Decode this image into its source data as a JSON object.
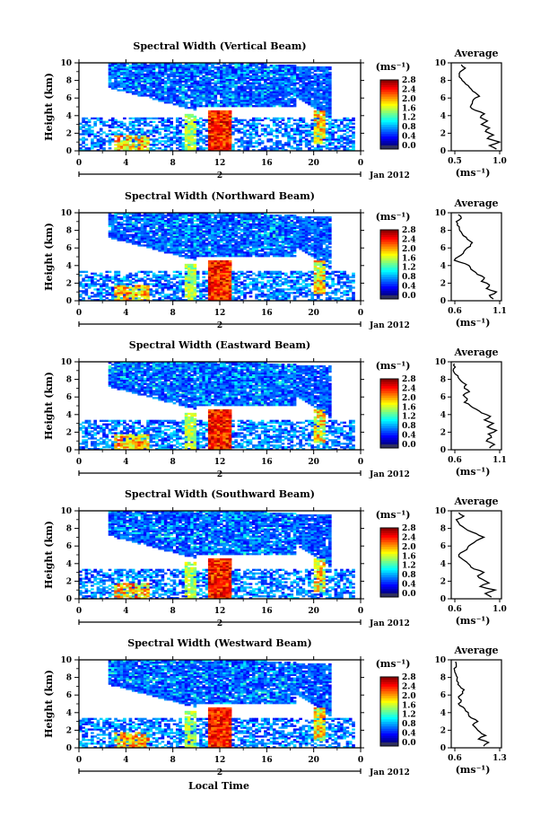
{
  "figure": {
    "xlabel": "Local Time",
    "date_label": "Jan 2012",
    "day_label": "2",
    "ylabel": "Height (km)",
    "unit_label": "(ms⁻¹)",
    "avg_title": "Average",
    "avg_unit_label": "(ms⁻¹)",
    "x_ticks": [
      "0",
      "4",
      "8",
      "12",
      "16",
      "20",
      "0"
    ],
    "y_ticks": [
      "0",
      "2",
      "4",
      "6",
      "8",
      "10"
    ],
    "colorbar_ticks": [
      "0.0",
      "0.4",
      "0.8",
      "1.2",
      "1.6",
      "2.0",
      "2.4",
      "2.8"
    ]
  },
  "chart_data": [
    {
      "type": "heatmap",
      "title": "Spectral Width (Vertical Beam)",
      "xlabel": "Local Time",
      "ylabel": "Height (km)",
      "xlim": [
        0,
        24
      ],
      "ylim": [
        0,
        10
      ],
      "clim": [
        0.0,
        2.8
      ],
      "colormap": "jet",
      "features": {
        "cloud_top_km": 10,
        "low_layer_top_km": 3.8,
        "convective_columns_hr": [
          9.5,
          12,
          20.5
        ],
        "peak_value": 2.8
      },
      "average_profile": {
        "title": "Average",
        "xlabel": "(ms⁻¹)",
        "xlim": [
          0.5,
          1.0
        ],
        "x_ticks": [
          "0.5",
          "1.0"
        ],
        "height_km": [
          0.2,
          0.6,
          1.0,
          1.4,
          1.8,
          2.2,
          2.6,
          3.0,
          3.4,
          3.8,
          4.2,
          4.6,
          5.0,
          5.4,
          5.8,
          6.2,
          6.6,
          7.0,
          7.4,
          7.8,
          8.2,
          8.6,
          9.0,
          9.4,
          9.8
        ],
        "values": [
          0.95,
          0.88,
          0.98,
          0.86,
          0.92,
          0.84,
          0.88,
          0.8,
          0.86,
          0.79,
          0.83,
          0.74,
          0.69,
          0.71,
          0.72,
          0.78,
          0.74,
          0.7,
          0.67,
          0.63,
          0.6,
          0.58,
          0.59,
          0.64,
          0.6
        ]
      }
    },
    {
      "type": "heatmap",
      "title": "Spectral Width (Northward Beam)",
      "xlabel": "Local Time",
      "ylabel": "Height (km)",
      "xlim": [
        0,
        24
      ],
      "ylim": [
        0,
        10
      ],
      "clim": [
        0.0,
        2.8
      ],
      "colormap": "jet",
      "features": {
        "cloud_top_km": 10,
        "low_layer_top_km": 3.5,
        "convective_columns_hr": [
          9.5,
          12,
          20.5
        ],
        "peak_value": 2.8
      },
      "average_profile": {
        "title": "Average",
        "xlabel": "(ms⁻¹)",
        "xlim": [
          0.6,
          1.1
        ],
        "x_ticks": [
          "0.6",
          "1.1"
        ],
        "height_km": [
          0.2,
          0.6,
          1.0,
          1.4,
          1.8,
          2.2,
          2.6,
          3.0,
          3.4,
          3.8,
          4.2,
          4.6,
          5.0,
          5.4,
          5.8,
          6.2,
          6.6,
          7.0,
          7.4,
          7.8,
          8.2,
          8.6,
          9.0,
          9.4,
          9.8
        ],
        "values": [
          1.02,
          0.98,
          1.05,
          0.95,
          0.98,
          0.9,
          0.93,
          0.86,
          0.82,
          0.79,
          0.74,
          0.63,
          0.67,
          0.72,
          0.74,
          0.79,
          0.81,
          0.76,
          0.72,
          0.7,
          0.68,
          0.66,
          0.65,
          0.7,
          0.67
        ]
      }
    },
    {
      "type": "heatmap",
      "title": "Spectral Width (Eastward Beam)",
      "xlabel": "Local Time",
      "ylabel": "Height (km)",
      "xlim": [
        0,
        24
      ],
      "ylim": [
        0,
        10
      ],
      "clim": [
        0.0,
        2.8
      ],
      "colormap": "jet",
      "features": {
        "cloud_top_km": 10,
        "low_layer_top_km": 3.5,
        "convective_columns_hr": [
          9.5,
          12,
          20.5
        ],
        "peak_value": 2.8
      },
      "average_profile": {
        "title": "Average",
        "xlabel": "(ms⁻¹)",
        "xlim": [
          0.6,
          1.1
        ],
        "x_ticks": [
          "0.6",
          "1.1"
        ],
        "height_km": [
          0.2,
          0.6,
          1.0,
          1.4,
          1.8,
          2.2,
          2.6,
          3.0,
          3.4,
          3.8,
          4.2,
          4.6,
          5.0,
          5.4,
          5.8,
          6.2,
          6.6,
          7.0,
          7.4,
          7.8,
          8.2,
          8.6,
          9.0,
          9.4,
          9.8
        ],
        "values": [
          0.98,
          1.03,
          0.95,
          1.0,
          0.97,
          1.05,
          0.96,
          1.02,
          0.93,
          0.99,
          0.9,
          0.85,
          0.79,
          0.73,
          0.76,
          0.72,
          0.78,
          0.73,
          0.75,
          0.7,
          0.67,
          0.64,
          0.62,
          0.64,
          0.63
        ]
      }
    },
    {
      "type": "heatmap",
      "title": "Spectral Width (Southward Beam)",
      "xlabel": "Local Time",
      "ylabel": "Height (km)",
      "xlim": [
        0,
        24
      ],
      "ylim": [
        0,
        10
      ],
      "clim": [
        0.0,
        2.8
      ],
      "colormap": "jet",
      "features": {
        "cloud_top_km": 10,
        "low_layer_top_km": 3.5,
        "convective_columns_hr": [
          9.5,
          12,
          20.5
        ],
        "peak_value": 2.8
      },
      "average_profile": {
        "title": "Average",
        "xlabel": "(ms⁻¹)",
        "xlim": [
          0.6,
          1.0
        ],
        "x_ticks": [
          "0.6",
          "1.0"
        ],
        "height_km": [
          0.2,
          0.6,
          1.0,
          1.4,
          1.8,
          2.2,
          2.6,
          3.0,
          3.4,
          3.8,
          4.2,
          4.6,
          5.0,
          5.4,
          5.8,
          6.2,
          6.6,
          7.0,
          7.4,
          7.8,
          8.2,
          8.6,
          9.0,
          9.4,
          9.8
        ],
        "values": [
          0.92,
          0.87,
          0.95,
          0.83,
          0.9,
          0.85,
          0.81,
          0.86,
          0.78,
          0.75,
          0.72,
          0.68,
          0.66,
          0.7,
          0.73,
          0.76,
          0.8,
          0.86,
          0.8,
          0.73,
          0.69,
          0.66,
          0.64,
          0.7,
          0.66
        ]
      }
    },
    {
      "type": "heatmap",
      "title": "Spectral Width (Westward Beam)",
      "xlabel": "Local Time",
      "ylabel": "Height (km)",
      "xlim": [
        0,
        24
      ],
      "ylim": [
        0,
        10
      ],
      "clim": [
        0.0,
        2.8
      ],
      "colormap": "jet",
      "features": {
        "cloud_top_km": 10,
        "low_layer_top_km": 3.5,
        "convective_columns_hr": [
          9.5,
          12,
          20.5
        ],
        "peak_value": 2.8
      },
      "average_profile": {
        "title": "Average",
        "xlabel": "(ms⁻¹)",
        "xlim": [
          0.6,
          1.3
        ],
        "x_ticks": [
          "0.6",
          "1.3"
        ],
        "height_km": [
          0.2,
          0.6,
          1.0,
          1.4,
          1.8,
          2.2,
          2.6,
          3.0,
          3.4,
          3.8,
          4.2,
          4.6,
          5.0,
          5.4,
          5.8,
          6.2,
          6.6,
          7.0,
          7.4,
          7.8,
          8.2,
          8.6,
          9.0,
          9.4,
          9.8
        ],
        "values": [
          1.05,
          1.12,
          0.98,
          1.08,
          1.0,
          0.95,
          0.9,
          0.97,
          0.88,
          0.84,
          0.8,
          0.77,
          0.7,
          0.74,
          0.7,
          0.76,
          0.78,
          0.72,
          0.7,
          0.68,
          0.67,
          0.65,
          0.64,
          0.67,
          0.66
        ]
      }
    }
  ]
}
